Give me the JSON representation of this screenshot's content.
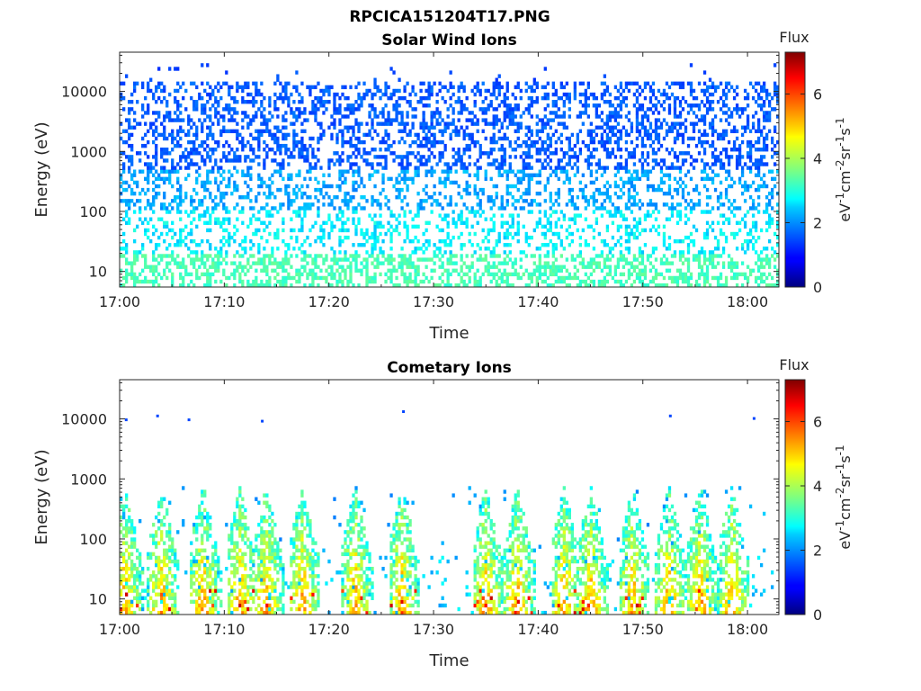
{
  "figure": {
    "title": "RPCICA151204T17.PNG",
    "panels": [
      {
        "subtitle": "Solar Wind Ions",
        "xlabel": "Time",
        "ylabel": "Energy (eV)",
        "x_ticks": [
          "17:00",
          "17:10",
          "17:20",
          "17:30",
          "17:40",
          "17:50",
          "18:00"
        ],
        "y_ticks": [
          "10",
          "100",
          "1000",
          "10000"
        ],
        "colorbar": {
          "title": "Flux",
          "ticks": [
            "0",
            "2",
            "4",
            "6"
          ]
        }
      },
      {
        "subtitle": "Cometary Ions",
        "xlabel": "Time",
        "ylabel": "Energy (eV)",
        "x_ticks": [
          "17:00",
          "17:10",
          "17:20",
          "17:30",
          "17:40",
          "17:50",
          "18:00"
        ],
        "y_ticks": [
          "10",
          "100",
          "1000",
          "10000"
        ],
        "colorbar": {
          "title": "Flux",
          "ticks": [
            "0",
            "2",
            "4",
            "6"
          ]
        }
      }
    ]
  },
  "chart_data": [
    {
      "type": "heatmap",
      "title": "RPCICA151204T17.PNG",
      "subtitle": "Solar Wind Ions",
      "xlabel": "Time",
      "ylabel": "Energy (eV)",
      "xlim": [
        "17:00",
        "18:03"
      ],
      "ylim": [
        5.5,
        45000
      ],
      "y_scale": "log",
      "colormap": "jet",
      "clim": [
        0,
        7.3
      ],
      "colorbar_label": "eV-1cm-2sr-1s-1",
      "colorbar_title": "Flux",
      "grid": false,
      "description_bands": [
        {
          "energy_range_eV": [
            5.5,
            20
          ],
          "flux_range": [
            3.0,
            3.5
          ],
          "density": 0.45
        },
        {
          "energy_range_eV": [
            20,
            100
          ],
          "flux_range": [
            2.3,
            3.0
          ],
          "density": 0.28
        },
        {
          "energy_range_eV": [
            100,
            500
          ],
          "flux_range": [
            1.8,
            2.4
          ],
          "density": 0.33
        },
        {
          "energy_range_eV": [
            500,
            15000
          ],
          "flux_range": [
            1.3,
            1.8
          ],
          "density": 0.38
        },
        {
          "energy_range_eV": [
            15000,
            30000
          ],
          "flux_range": [
            1.2,
            1.6
          ],
          "density": 0.02
        }
      ]
    },
    {
      "type": "heatmap",
      "subtitle": "Cometary Ions",
      "xlabel": "Time",
      "ylabel": "Energy (eV)",
      "xlim": [
        "17:00",
        "18:03"
      ],
      "ylim": [
        5.5,
        45000
      ],
      "y_scale": "log",
      "colormap": "jet",
      "clim": [
        0,
        7.3
      ],
      "colorbar_label": "eV-1cm-2sr-1s-1",
      "colorbar_title": "Flux",
      "grid": false,
      "bursts_minutes": [
        0,
        3.5,
        7.5,
        11,
        13.5,
        17,
        22,
        26.5,
        34.5,
        37.5,
        42,
        44.5,
        48.5,
        52,
        55,
        58
      ],
      "peak_flux": 6.8,
      "sparse_high_energy_points": [
        {
          "time": "17:00.5",
          "energy_eV": 9500
        },
        {
          "time": "17:03.5",
          "energy_eV": 11000
        },
        {
          "time": "17:06.5",
          "energy_eV": 9500
        },
        {
          "time": "17:13.5",
          "energy_eV": 9000
        },
        {
          "time": "17:27",
          "energy_eV": 13000
        },
        {
          "time": "17:52.5",
          "energy_eV": 11000
        },
        {
          "time": "18:00.5",
          "energy_eV": 10000
        }
      ]
    }
  ]
}
